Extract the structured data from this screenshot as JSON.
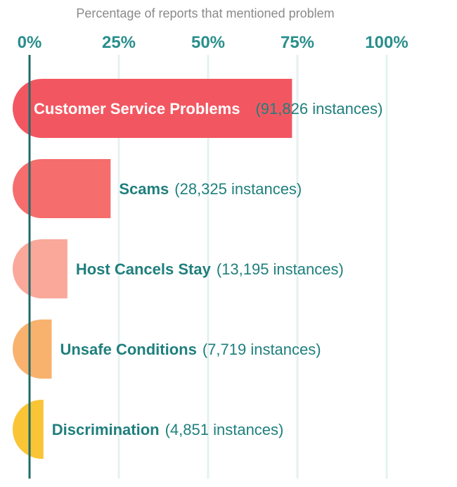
{
  "chart_data": {
    "type": "bar",
    "orientation": "horizontal",
    "subtitle": "Percentage of reports that mentioned problem",
    "x_ticks": [
      "0%",
      "25%",
      "50%",
      "75%",
      "100%"
    ],
    "xlim": [
      0,
      100
    ],
    "grid": true,
    "categories": [
      "Customer Service Problems",
      "Scams",
      "Host Cancels Stay",
      "Unsafe Conditions",
      "Discrimination"
    ],
    "values": [
      73.5,
      22.7,
      10.6,
      6.2,
      3.9
    ],
    "annotations": [
      "(91,826 instances)",
      "(28,325 instances)",
      "(13,195 instances)",
      "(7,719 instances)",
      "(4,851 instances)"
    ],
    "colors": [
      "#f25761",
      "#f56d6d",
      "#f9a89a",
      "#f8b26e",
      "#f9c436"
    ],
    "label_color": "#1f7f7d",
    "inside_label_color": "#ffffff",
    "axis_color": "#1f6b6a",
    "grid_color": "#e6f1f1"
  }
}
